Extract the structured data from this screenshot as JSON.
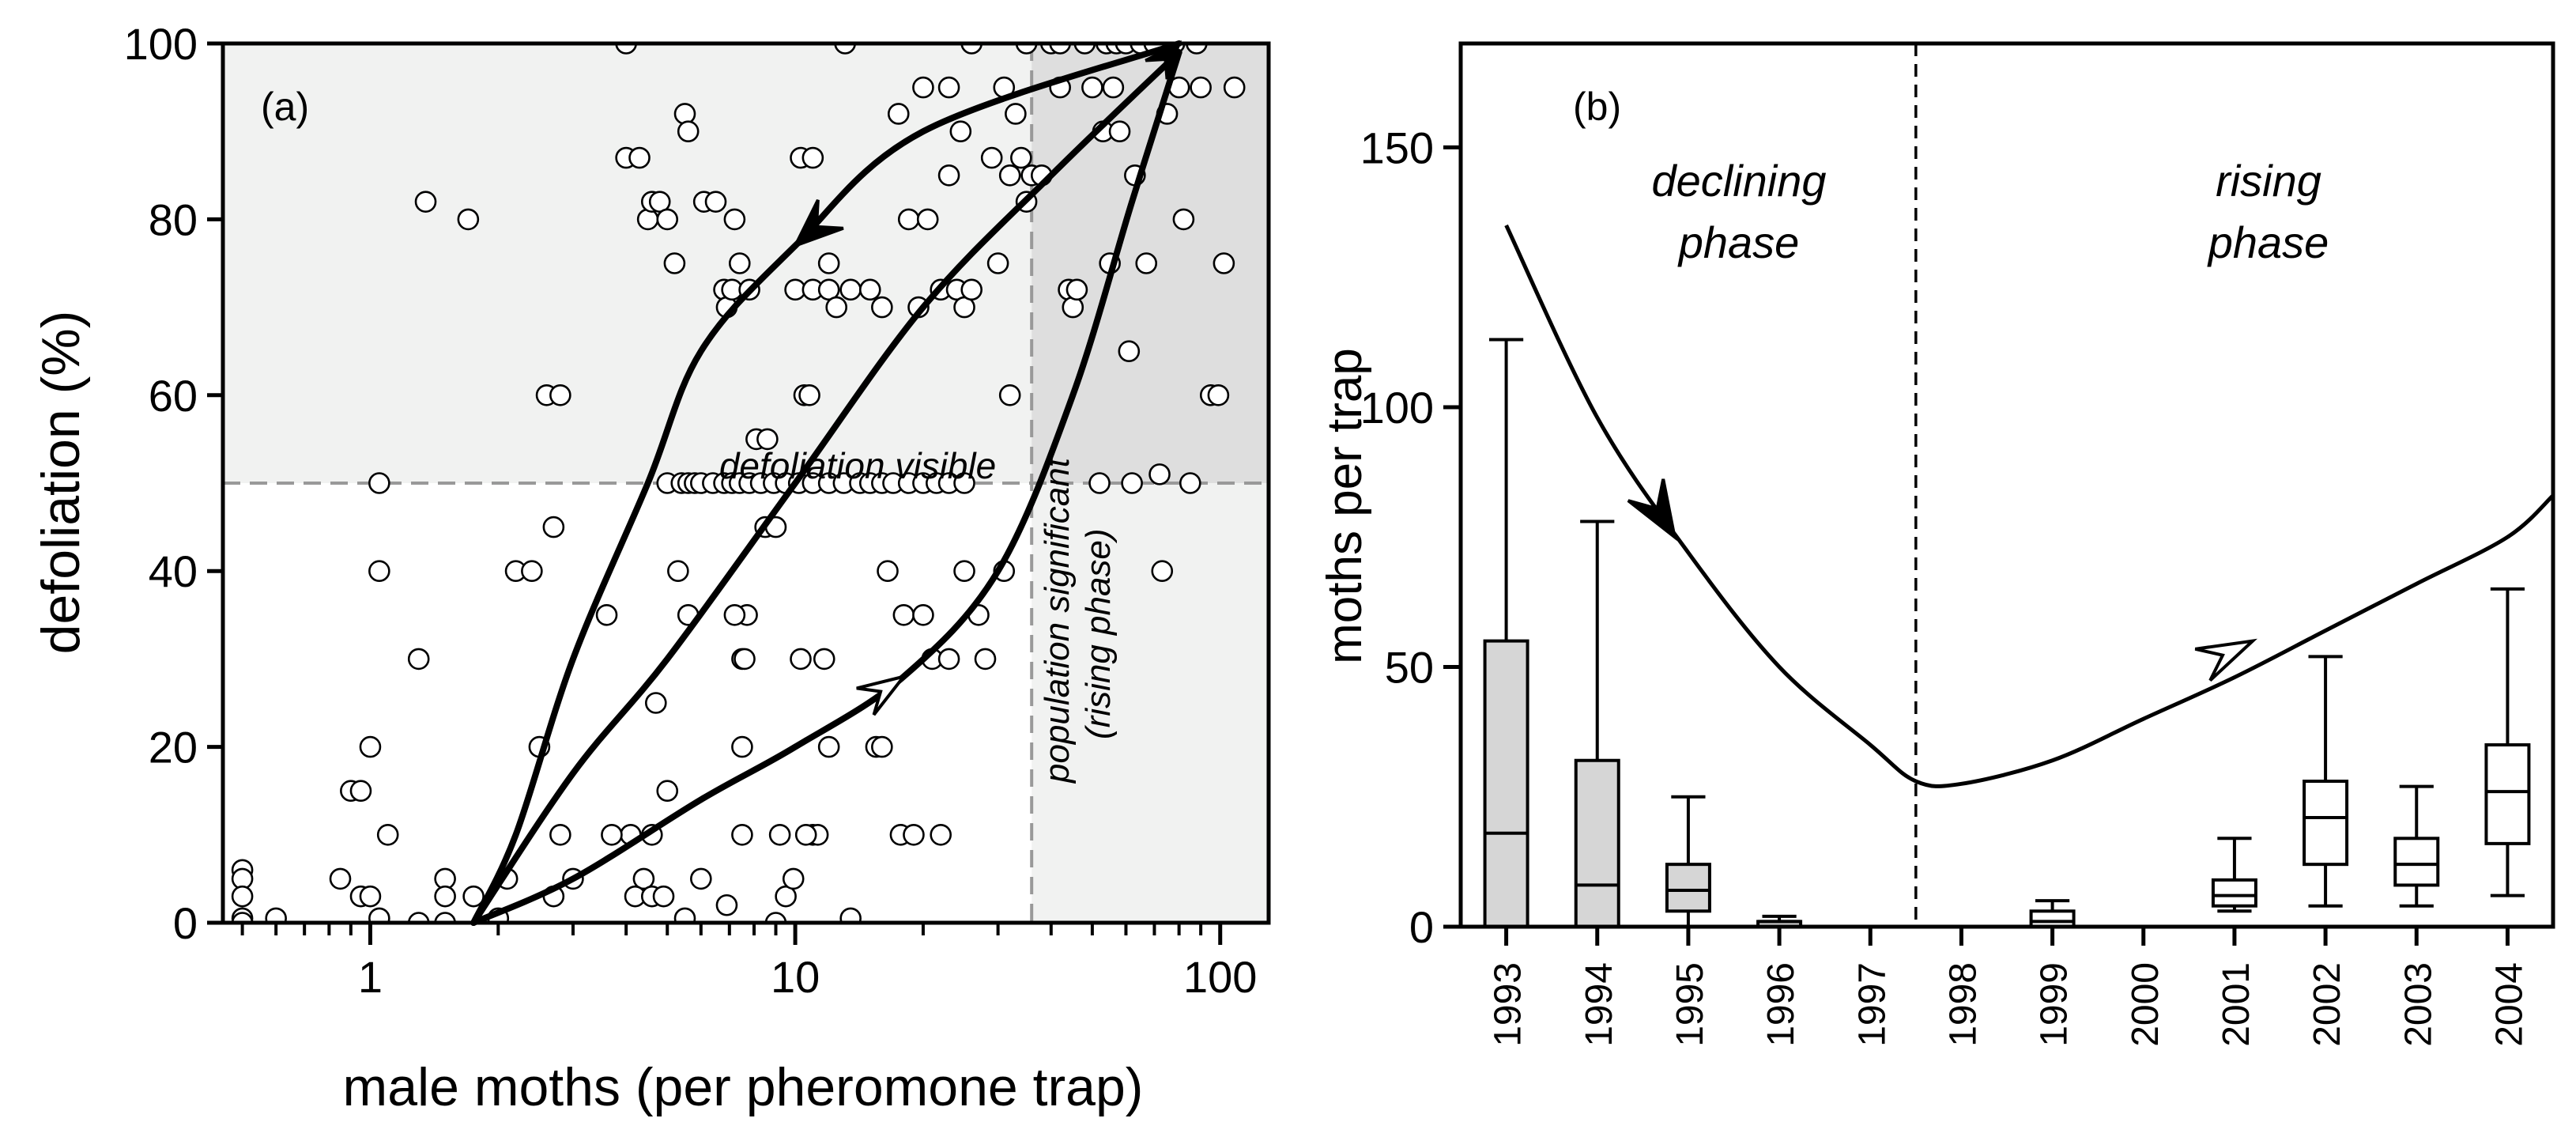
{
  "chart_data": [
    {
      "panel": "(a)",
      "type": "scatter",
      "xlabel": "male moths (per pheromone trap)",
      "ylabel": "defoliation (%)",
      "xscale": "log",
      "xlim": [
        0.45,
        130
      ],
      "ylim": [
        0,
        100
      ],
      "xticks": [
        1,
        10,
        100
      ],
      "xtick_labels": [
        "1",
        "10",
        "100"
      ],
      "yticks": [
        0,
        20,
        40,
        60,
        80,
        100
      ],
      "ytick_labels": [
        "0",
        "20",
        "40",
        "60",
        "80",
        "100"
      ],
      "thresholds": {
        "population_significant_x": 36,
        "defoliation_visible_y": 50
      },
      "annotations": {
        "defoliation_visible": "defoliation visible",
        "population_line1": "population significant",
        "population_line2": "(rising phase)"
      },
      "points": [
        [
          0.5,
          6
        ],
        [
          0.5,
          5
        ],
        [
          0.5,
          3
        ],
        [
          0.5,
          0.5
        ],
        [
          0.5,
          0
        ],
        [
          0.6,
          0.5
        ],
        [
          0.9,
          15
        ],
        [
          0.95,
          15
        ],
        [
          0.95,
          3
        ],
        [
          1.0,
          20
        ],
        [
          1.0,
          3
        ],
        [
          1.05,
          40
        ],
        [
          1.05,
          50
        ],
        [
          1.1,
          10
        ],
        [
          1.05,
          0.5
        ],
        [
          0.85,
          5
        ],
        [
          1.3,
          30
        ],
        [
          1.35,
          82
        ],
        [
          1.3,
          0
        ],
        [
          1.5,
          5
        ],
        [
          1.5,
          3
        ],
        [
          1.5,
          0
        ],
        [
          1.7,
          80
        ],
        [
          1.75,
          3
        ],
        [
          2.0,
          0.5
        ],
        [
          2.1,
          5
        ],
        [
          2.2,
          40
        ],
        [
          2.4,
          40
        ],
        [
          2.5,
          20
        ],
        [
          2.6,
          60
        ],
        [
          2.8,
          60
        ],
        [
          2.7,
          45
        ],
        [
          2.8,
          10
        ],
        [
          3.0,
          5
        ],
        [
          2.7,
          3
        ],
        [
          3.6,
          35
        ],
        [
          4.0,
          87
        ],
        [
          4.0,
          100
        ],
        [
          4.3,
          87
        ],
        [
          4.5,
          80
        ],
        [
          4.6,
          82
        ],
        [
          4.8,
          82
        ],
        [
          5.0,
          80
        ],
        [
          5.2,
          75
        ],
        [
          5.0,
          50
        ],
        [
          5.5,
          92
        ],
        [
          5.6,
          90
        ],
        [
          6.1,
          82
        ],
        [
          4.7,
          25
        ],
        [
          4.6,
          10
        ],
        [
          5.0,
          15
        ],
        [
          4.4,
          5
        ],
        [
          4.2,
          3
        ],
        [
          4.6,
          3
        ],
        [
          4.9,
          3
        ],
        [
          4.1,
          10
        ],
        [
          3.7,
          10
        ],
        [
          5.4,
          50
        ],
        [
          5.6,
          50
        ],
        [
          5.8,
          50
        ],
        [
          6.0,
          50
        ],
        [
          6.4,
          50
        ],
        [
          6.8,
          50
        ],
        [
          7.1,
          50
        ],
        [
          7.4,
          50
        ],
        [
          7.8,
          50
        ],
        [
          8.3,
          50
        ],
        [
          8.9,
          50
        ],
        [
          9.5,
          50
        ],
        [
          10.2,
          50
        ],
        [
          11.0,
          50
        ],
        [
          12.0,
          50
        ],
        [
          13.0,
          50
        ],
        [
          14.2,
          50
        ],
        [
          15.0,
          50
        ],
        [
          16.0,
          50
        ],
        [
          17.0,
          50
        ],
        [
          18.5,
          50
        ],
        [
          20.0,
          50
        ],
        [
          21.5,
          50
        ],
        [
          23.0,
          50
        ],
        [
          25.0,
          50
        ],
        [
          5.3,
          40
        ],
        [
          5.6,
          35
        ],
        [
          6.0,
          5
        ],
        [
          5.5,
          0.5
        ],
        [
          6.5,
          82
        ],
        [
          6.8,
          72
        ],
        [
          6.9,
          70
        ],
        [
          7.1,
          72
        ],
        [
          7.2,
          80
        ],
        [
          7.4,
          75
        ],
        [
          7.8,
          72
        ],
        [
          8.1,
          55
        ],
        [
          8.5,
          45
        ],
        [
          8.6,
          55
        ],
        [
          9.0,
          45
        ],
        [
          7.5,
          30
        ],
        [
          7.7,
          35
        ],
        [
          7.2,
          35
        ],
        [
          7.6,
          30
        ],
        [
          6.9,
          2
        ],
        [
          7.5,
          20
        ],
        [
          7.5,
          10
        ],
        [
          9.0,
          0
        ],
        [
          9.2,
          10
        ],
        [
          9.5,
          3
        ],
        [
          9.9,
          5
        ],
        [
          10.0,
          72
        ],
        [
          10.3,
          87
        ],
        [
          10.3,
          30
        ],
        [
          10.5,
          60
        ],
        [
          11.0,
          72
        ],
        [
          11.0,
          87
        ],
        [
          10.8,
          60
        ],
        [
          11.0,
          10
        ],
        [
          11.3,
          10
        ],
        [
          10.6,
          10
        ],
        [
          11.7,
          30
        ],
        [
          12.0,
          72
        ],
        [
          12.0,
          75
        ],
        [
          12.5,
          70
        ],
        [
          12.0,
          20
        ],
        [
          13.1,
          100
        ],
        [
          13.5,
          72
        ],
        [
          13.5,
          0.5
        ],
        [
          15.0,
          72
        ],
        [
          15.5,
          20
        ],
        [
          16.0,
          70
        ],
        [
          16.5,
          40
        ],
        [
          16.0,
          20
        ],
        [
          17.5,
          92
        ],
        [
          17.7,
          10
        ],
        [
          18.0,
          35
        ],
        [
          18.5,
          80
        ],
        [
          19.0,
          10
        ],
        [
          19.5,
          70
        ],
        [
          20.0,
          95
        ],
        [
          20.5,
          80
        ],
        [
          20.0,
          35
        ],
        [
          21.0,
          30
        ],
        [
          22.0,
          72
        ],
        [
          22.0,
          10
        ],
        [
          23.0,
          95
        ],
        [
          23.0,
          30
        ],
        [
          23.0,
          85
        ],
        [
          24.0,
          72
        ],
        [
          24.5,
          90
        ],
        [
          25.0,
          70
        ],
        [
          25.0,
          40
        ],
        [
          26.0,
          72
        ],
        [
          26.0,
          100
        ],
        [
          27.0,
          35
        ],
        [
          28.0,
          30
        ],
        [
          29.0,
          87
        ],
        [
          30.0,
          75
        ],
        [
          31.0,
          95
        ],
        [
          31.0,
          40
        ],
        [
          32.0,
          60
        ],
        [
          32.0,
          85
        ],
        [
          33.0,
          92
        ],
        [
          34.0,
          87
        ],
        [
          35.0,
          100
        ],
        [
          35.0,
          82
        ],
        [
          36.0,
          85
        ],
        [
          38.0,
          85
        ],
        [
          40.0,
          100
        ],
        [
          42.0,
          100
        ],
        [
          42.0,
          95
        ],
        [
          44.0,
          72
        ],
        [
          45.0,
          70
        ],
        [
          46.0,
          72
        ],
        [
          48.0,
          100
        ],
        [
          50.0,
          95
        ],
        [
          52.0,
          50
        ],
        [
          53.0,
          90
        ],
        [
          54.0,
          100
        ],
        [
          55.0,
          75
        ],
        [
          56.0,
          95
        ],
        [
          57.0,
          100
        ],
        [
          58.0,
          90
        ],
        [
          60.0,
          100
        ],
        [
          61.0,
          65
        ],
        [
          62.0,
          50
        ],
        [
          63.0,
          85
        ],
        [
          65.0,
          100
        ],
        [
          67.0,
          75
        ],
        [
          70.0,
          100
        ],
        [
          72.0,
          51
        ],
        [
          73.0,
          40
        ],
        [
          75.0,
          92
        ],
        [
          78.0,
          100
        ],
        [
          80.0,
          95
        ],
        [
          82.0,
          80
        ],
        [
          85.0,
          50
        ],
        [
          88.0,
          100
        ],
        [
          90.0,
          95
        ],
        [
          95.0,
          60
        ],
        [
          99.0,
          60
        ],
        [
          102.0,
          75
        ],
        [
          108.0,
          95
        ]
      ],
      "curves": [
        {
          "name": "upper arc",
          "arrow": "filled",
          "points": [
            [
              80,
              100
            ],
            [
              20,
              90
            ],
            [
              10,
              77
            ],
            [
              6,
              65
            ],
            [
              4.5,
              50
            ],
            [
              3,
              30
            ],
            [
              2.2,
              10
            ],
            [
              1.75,
              0
            ]
          ]
        },
        {
          "name": "middle line",
          "arrow": "none",
          "points": [
            [
              1.75,
              0
            ],
            [
              3,
              17
            ],
            [
              5,
              30
            ],
            [
              10,
              50
            ],
            [
              20,
              70
            ],
            [
              40,
              85
            ],
            [
              80,
              99
            ]
          ]
        },
        {
          "name": "lower arc",
          "arrow": "open",
          "points": [
            [
              1.75,
              0
            ],
            [
              3,
              5
            ],
            [
              6,
              14
            ],
            [
              10,
              20
            ],
            [
              18,
              28
            ],
            [
              30,
              40
            ],
            [
              45,
              60
            ],
            [
              62,
              82
            ],
            [
              80,
              99
            ]
          ]
        }
      ]
    },
    {
      "panel": "(b)",
      "type": "box",
      "ylabel": "moths per trap",
      "ylim": [
        0,
        170
      ],
      "yticks": [
        0,
        50,
        100,
        150
      ],
      "ytick_labels": [
        "0",
        "50",
        "100",
        "150"
      ],
      "categories": [
        "1993",
        "1994",
        "1995",
        "1996",
        "1997",
        "1998",
        "1999",
        "2000",
        "2001",
        "2002",
        "2003",
        "2004"
      ],
      "boxes": [
        {
          "year": "1993",
          "whisker_low": 0,
          "q1": 0,
          "median": 18,
          "q3": 55,
          "whisker_high": 113,
          "phase": "declining"
        },
        {
          "year": "1994",
          "whisker_low": 0,
          "q1": 0,
          "median": 8,
          "q3": 32,
          "whisker_high": 78,
          "phase": "declining"
        },
        {
          "year": "1995",
          "whisker_low": 0,
          "q1": 3,
          "median": 7,
          "q3": 12,
          "whisker_high": 25,
          "phase": "declining"
        },
        {
          "year": "1996",
          "whisker_low": 0,
          "q1": 0,
          "median": 1,
          "q3": 1,
          "whisker_high": 2,
          "phase": "declining"
        },
        {
          "year": "1997",
          "whisker_low": 0,
          "q1": 0,
          "median": 0,
          "q3": 0,
          "whisker_high": 0,
          "phase": "declining"
        },
        {
          "year": "1998",
          "whisker_low": 0,
          "q1": 0,
          "median": 0,
          "q3": 0,
          "whisker_high": 0,
          "phase": "rising"
        },
        {
          "year": "1999",
          "whisker_low": 0,
          "q1": 0,
          "median": 1,
          "q3": 3,
          "whisker_high": 5,
          "phase": "rising"
        },
        {
          "year": "2000",
          "whisker_low": 0,
          "q1": 0,
          "median": 0,
          "q3": 0,
          "whisker_high": 0,
          "phase": "rising"
        },
        {
          "year": "2001",
          "whisker_low": 3,
          "q1": 4,
          "median": 6,
          "q3": 9,
          "whisker_high": 17,
          "phase": "rising"
        },
        {
          "year": "2002",
          "whisker_low": 4,
          "q1": 12,
          "median": 21,
          "q3": 28,
          "whisker_high": 52,
          "phase": "rising"
        },
        {
          "year": "2003",
          "whisker_low": 4,
          "q1": 8,
          "median": 12,
          "q3": 17,
          "whisker_high": 27,
          "phase": "rising"
        },
        {
          "year": "2004",
          "whisker_low": 6,
          "q1": 16,
          "median": 26,
          "q3": 35,
          "whisker_high": 65,
          "phase": "rising"
        }
      ],
      "phase_divider_after": "1997",
      "phase_labels": [
        {
          "line1": "declining",
          "line2": "phase"
        },
        {
          "line1": "rising",
          "line2": "phase"
        }
      ],
      "trend_curve": [
        [
          0,
          135
        ],
        [
          1,
          98
        ],
        [
          2,
          72
        ],
        [
          3,
          50
        ],
        [
          4,
          35
        ],
        [
          4.5,
          28
        ],
        [
          5,
          27.5
        ],
        [
          6,
          32
        ],
        [
          7,
          40
        ],
        [
          8,
          48
        ],
        [
          9,
          57
        ],
        [
          10,
          66
        ],
        [
          11,
          75
        ],
        [
          11.5,
          83
        ]
      ]
    }
  ],
  "colors": {
    "shade_light": "#f1f2f1",
    "shade_dark": "#dedede",
    "box_fill_declining": "#d6d6d6",
    "box_fill_rising": "#ffffff",
    "threshold_line": "#999999",
    "ink": "#000000"
  }
}
